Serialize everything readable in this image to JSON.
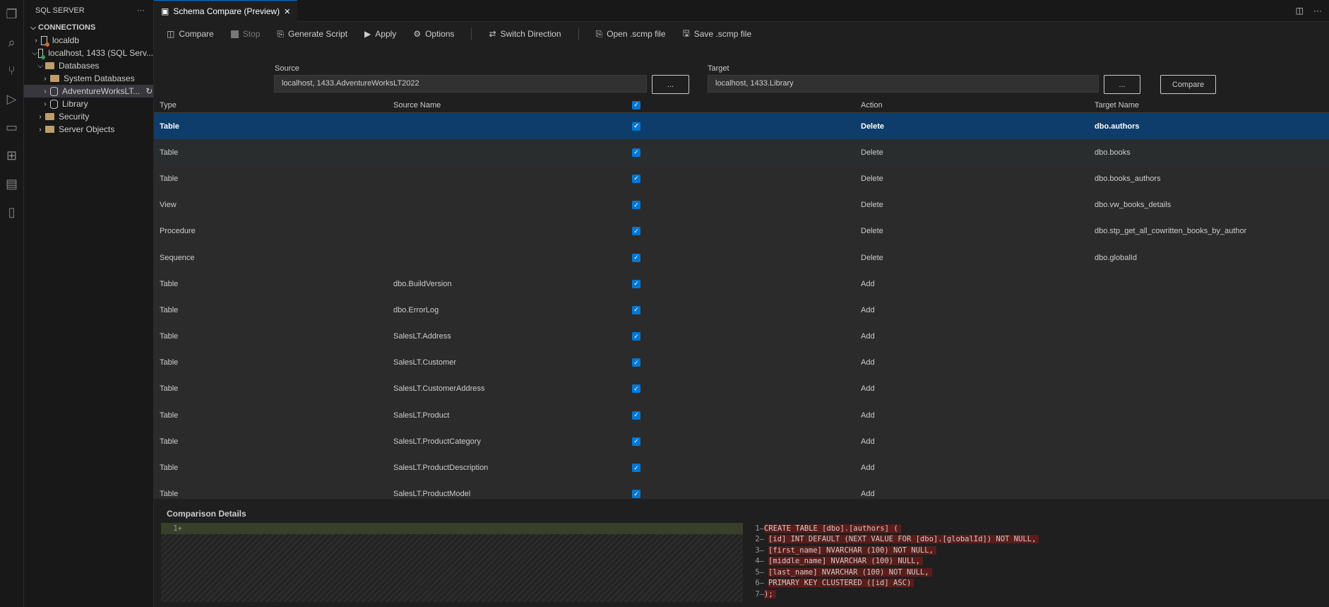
{
  "sidebar": {
    "title": "SQL SERVER",
    "more": "···",
    "section": "CONNECTIONS",
    "items": [
      {
        "label": "localdb",
        "level": 0
      },
      {
        "label": "localhost, 1433 (SQL Serv...",
        "level": 0
      },
      {
        "label": "Databases",
        "level": 1
      },
      {
        "label": "System Databases",
        "level": 2
      },
      {
        "label": "AdventureWorksLT...",
        "level": 2
      },
      {
        "label": "Library",
        "level": 2
      },
      {
        "label": "Security",
        "level": 1
      },
      {
        "label": "Server Objects",
        "level": 1
      }
    ]
  },
  "tab": {
    "title": "Schema Compare (Preview)",
    "close": "✕"
  },
  "toolbar": {
    "compare": "Compare",
    "stop": "Stop",
    "generate": "Generate Script",
    "apply": "Apply",
    "options": "Options",
    "switch": "Switch Direction",
    "open": "Open .scmp file",
    "save": "Save .scmp file"
  },
  "source": {
    "label": "Source",
    "value": "localhost, 1433.AdventureWorksLT2022",
    "browse": "..."
  },
  "target": {
    "label": "Target",
    "value": "localhost, 1433.Library",
    "browse": "..."
  },
  "compare_button": "Compare",
  "grid": {
    "headers": [
      "Type",
      "Source Name",
      "",
      "Action",
      "Target Name"
    ],
    "rows": [
      [
        "Table",
        "",
        "Delete",
        "dbo.authors"
      ],
      [
        "Table",
        "",
        "Delete",
        "dbo.books"
      ],
      [
        "Table",
        "",
        "Delete",
        "dbo.books_authors"
      ],
      [
        "View",
        "",
        "Delete",
        "dbo.vw_books_details"
      ],
      [
        "Procedure",
        "",
        "Delete",
        "dbo.stp_get_all_cowritten_books_by_author"
      ],
      [
        "Sequence",
        "",
        "Delete",
        "dbo.globalId"
      ],
      [
        "Table",
        "dbo.BuildVersion",
        "Add",
        ""
      ],
      [
        "Table",
        "dbo.ErrorLog",
        "Add",
        ""
      ],
      [
        "Table",
        "SalesLT.Address",
        "Add",
        ""
      ],
      [
        "Table",
        "SalesLT.Customer",
        "Add",
        ""
      ],
      [
        "Table",
        "SalesLT.CustomerAddress",
        "Add",
        ""
      ],
      [
        "Table",
        "SalesLT.Product",
        "Add",
        ""
      ],
      [
        "Table",
        "SalesLT.ProductCategory",
        "Add",
        ""
      ],
      [
        "Table",
        "SalesLT.ProductDescription",
        "Add",
        ""
      ],
      [
        "Table",
        "SalesLT.ProductModel",
        "Add",
        ""
      ]
    ]
  },
  "details": {
    "title": "Comparison Details",
    "left_line": "1+",
    "right_lines": [
      "CREATE TABLE [dbo].[authors] (",
      "[id] INT DEFAULT (NEXT VALUE FOR [dbo].[globalId]) NOT NULL,",
      "[first_name] NVARCHAR (100) NOT NULL,",
      "[middle_name] NVARCHAR (100) NULL,",
      "[last_name] NVARCHAR (100) NOT NULL,",
      "PRIMARY KEY CLUSTERED ([id] ASC)",
      ");"
    ]
  }
}
